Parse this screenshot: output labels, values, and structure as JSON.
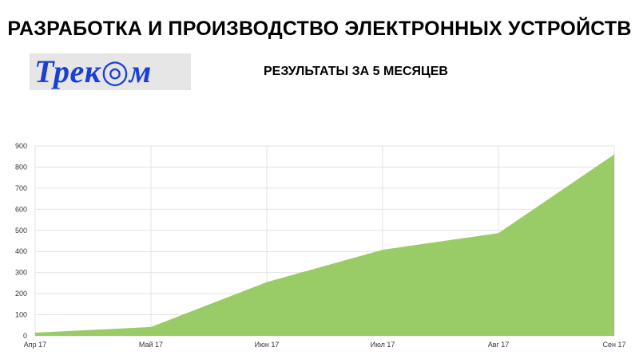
{
  "header": {
    "title": "РАЗРАБОТКА И ПРОИЗВОДСТВО ЭЛЕКТРОННЫХ УСТРОЙСТВ",
    "subtitle": "РЕЗУЛЬТАТЫ ЗА 5 МЕСЯЦЕВ"
  },
  "logo": {
    "text": "Трек◎м",
    "color": "#1a3fd9",
    "background": "#e6e6e6"
  },
  "chart_data": {
    "type": "area",
    "categories": [
      "Апр 17",
      "Май 17",
      "Июн 17",
      "Июл 17",
      "Авг 17",
      "Сен 17"
    ],
    "values": [
      15,
      42,
      255,
      408,
      487,
      860
    ],
    "ylim": [
      0,
      900
    ],
    "yticks": [
      0,
      100,
      200,
      300,
      400,
      500,
      600,
      700,
      800,
      900
    ],
    "grid": true,
    "fill_color": "#99cc66",
    "title": "",
    "xlabel": "",
    "ylabel": ""
  }
}
